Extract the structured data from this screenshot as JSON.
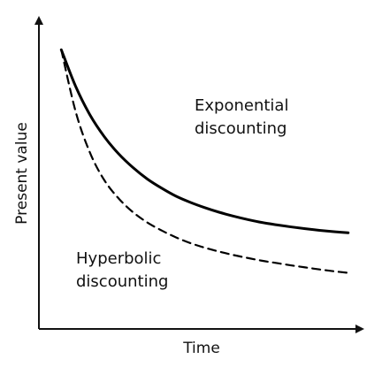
{
  "chart_data": {
    "type": "line",
    "title": "",
    "xlabel": "Time",
    "ylabel": "Present value",
    "grid": false,
    "axis_ticks": false,
    "series": [
      {
        "name": "Exponential discounting",
        "style": "solid",
        "color": "#000000",
        "x": [
          0,
          0.5,
          1,
          1.5,
          2,
          2.5,
          3,
          3.5,
          4,
          4.5,
          5,
          5.5,
          6,
          6.5,
          7,
          7.5,
          8,
          8.5,
          9,
          9.5,
          10
        ],
        "values": [
          1,
          0.84,
          0.715,
          0.62,
          0.545,
          0.485,
          0.435,
          0.395,
          0.36,
          0.333,
          0.31,
          0.29,
          0.273,
          0.258,
          0.245,
          0.235,
          0.226,
          0.218,
          0.211,
          0.205,
          0.2
        ]
      },
      {
        "name": "Hyperbolic discounting",
        "style": "dashed",
        "color": "#000000",
        "x": [
          0,
          0.5,
          1,
          1.5,
          2,
          2.5,
          3,
          3.5,
          4,
          4.5,
          5,
          5.5,
          6,
          6.5,
          7,
          7.5,
          8,
          8.5,
          9,
          9.5,
          10
        ],
        "values": [
          1,
          0.73,
          0.55,
          0.43,
          0.35,
          0.29,
          0.245,
          0.21,
          0.18,
          0.155,
          0.135,
          0.118,
          0.103,
          0.09,
          0.078,
          0.068,
          0.058,
          0.049,
          0.04,
          0.032,
          0.025
        ]
      }
    ],
    "labels": [
      {
        "series": 0,
        "lines": [
          "Exponential",
          "discounting"
        ]
      },
      {
        "series": 1,
        "lines": [
          "Hyperbolic",
          "discounting"
        ]
      }
    ],
    "xlim": [
      -0.78,
      10.5
    ],
    "ylim": [
      -0.22,
      1.14
    ]
  }
}
